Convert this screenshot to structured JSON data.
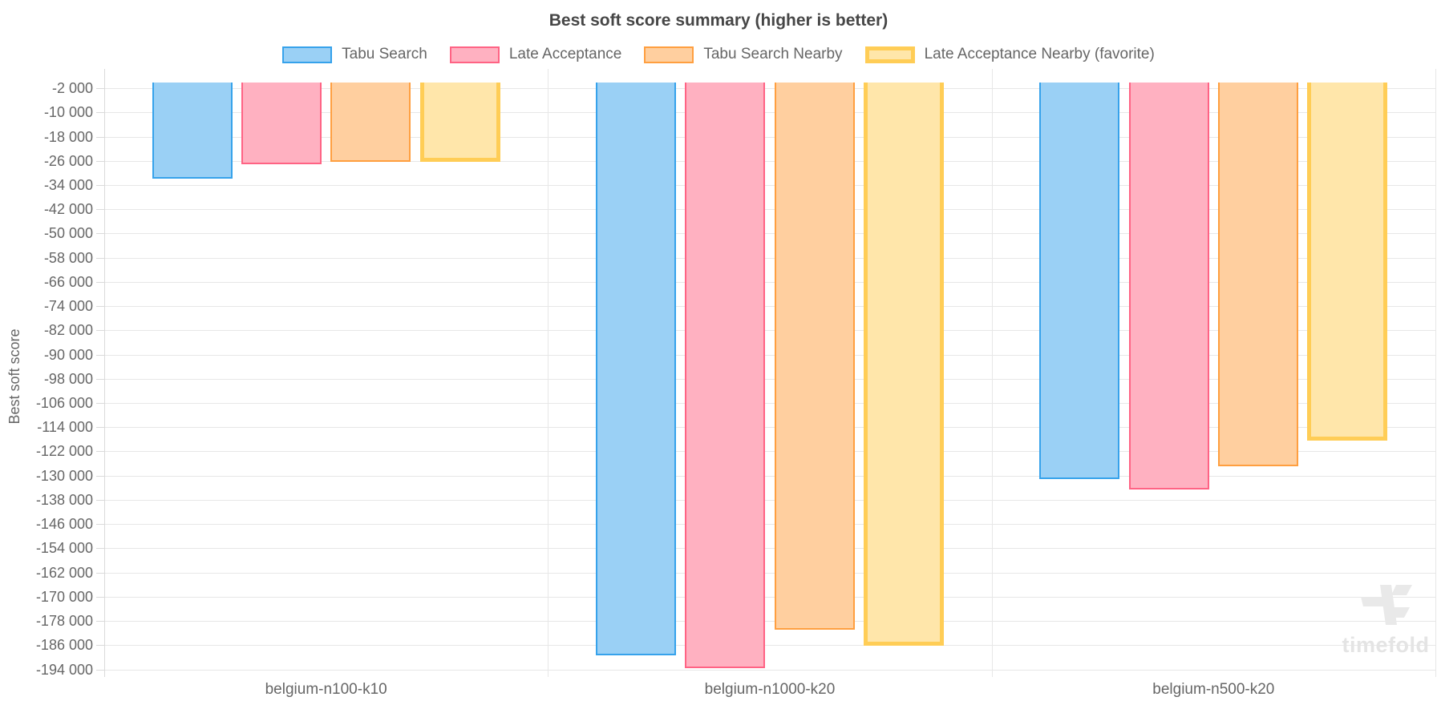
{
  "title": "Best soft score summary (higher is better)",
  "watermark": {
    "text": "timefold"
  },
  "chart_data": {
    "type": "bar",
    "title": "Best soft score summary (higher is better)",
    "xlabel": "",
    "ylabel": "Best soft score",
    "legend_position": "top",
    "grid": true,
    "orientation": "vertical",
    "baseline": 0,
    "ylim": [
      -196000,
      0
    ],
    "categories": [
      "belgium-n100-k10",
      "belgium-n1000-k20",
      "belgium-n500-k20"
    ],
    "series": [
      {
        "name": "Tabu Search",
        "fill": "#9AD0F5",
        "border": "#36A2EB",
        "favorite": false,
        "values": [
          -32000,
          -189300,
          -131000
        ]
      },
      {
        "name": "Late Acceptance",
        "fill": "#FFB1C1",
        "border": "#FF6384",
        "favorite": false,
        "values": [
          -27000,
          -193500,
          -134500
        ]
      },
      {
        "name": "Tabu Search Nearby",
        "fill": "#FFCF9F",
        "border": "#FF9F40",
        "favorite": false,
        "values": [
          -26300,
          -181000,
          -126900
        ]
      },
      {
        "name": "Late Acceptance Nearby (favorite)",
        "fill": "#FFE6AA",
        "border": "#FFCD56",
        "favorite": true,
        "values": [
          -26200,
          -186300,
          -118400
        ]
      }
    ],
    "y_tick_values": [
      -2000,
      -10000,
      -18000,
      -26000,
      -34000,
      -42000,
      -50000,
      -58000,
      -66000,
      -74000,
      -82000,
      -90000,
      -98000,
      -106000,
      -114000,
      -122000,
      -130000,
      -138000,
      -146000,
      -154000,
      -162000,
      -170000,
      -178000,
      -186000,
      -194000
    ],
    "y_tick_labels": [
      "-2 000",
      "-10 000",
      "-18 000",
      "-26 000",
      "-34 000",
      "-42 000",
      "-50 000",
      "-58 000",
      "-66 000",
      "-74 000",
      "-82 000",
      "-90 000",
      "-98 000",
      "-106 000",
      "-114 000",
      "-122 000",
      "-130 000",
      "-138 000",
      "-146 000",
      "-154 000",
      "-162 000",
      "-170 000",
      "-178 000",
      "-186 000",
      "-194 000"
    ]
  }
}
